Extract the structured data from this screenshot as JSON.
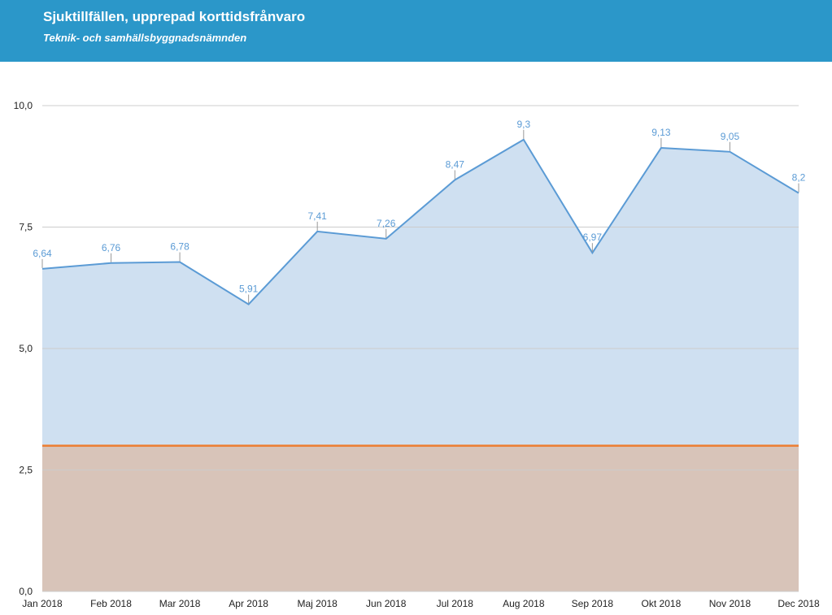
{
  "header": {
    "title": "Sjuktillfällen, upprepad korttidsfrånvaro",
    "subtitle": "Teknik- och samhällsbyggnadsnämnden"
  },
  "colors": {
    "header_bg": "#2b97c9",
    "series_line": "#5b9bd5",
    "series_fill": "#cfe0f1",
    "target_line": "#ed7d31",
    "target_fill": "#d8c4b9",
    "grid": "#cccccc",
    "data_label": "#5b9bd5"
  },
  "chart_data": {
    "type": "area",
    "title": "Sjuktillfällen, upprepad korttidsfrånvaro",
    "subtitle": "Teknik- och samhällsbyggnadsnämnden",
    "xlabel": "",
    "ylabel": "",
    "categories": [
      "Jan 2018",
      "Feb 2018",
      "Mar 2018",
      "Apr 2018",
      "Maj 2018",
      "Jun 2018",
      "Jul 2018",
      "Aug 2018",
      "Sep 2018",
      "Okt 2018",
      "Nov 2018",
      "Dec 2018"
    ],
    "series": [
      {
        "values": [
          6.64,
          6.76,
          6.78,
          5.91,
          7.41,
          7.26,
          8.47,
          9.3,
          6.97,
          9.13,
          9.05,
          8.2
        ],
        "labels": [
          "6,64",
          "6,76",
          "6,78",
          "5,91",
          "7,41",
          "7,26",
          "8,47",
          "9,3",
          "6,97",
          "9,13",
          "9,05",
          "8,2"
        ],
        "color": "#5b9bd5"
      },
      {
        "values": [
          3,
          3,
          3,
          3,
          3,
          3,
          3,
          3,
          3,
          3,
          3,
          3
        ],
        "color": "#ed7d31"
      }
    ],
    "yticks": [
      0,
      2.5,
      5,
      7.5,
      10
    ],
    "ytick_labels": [
      "0,0",
      "2,5",
      "5,0",
      "7,5",
      "10,0"
    ],
    "ylim": [
      0,
      10
    ],
    "grid": true,
    "legend": "none"
  }
}
